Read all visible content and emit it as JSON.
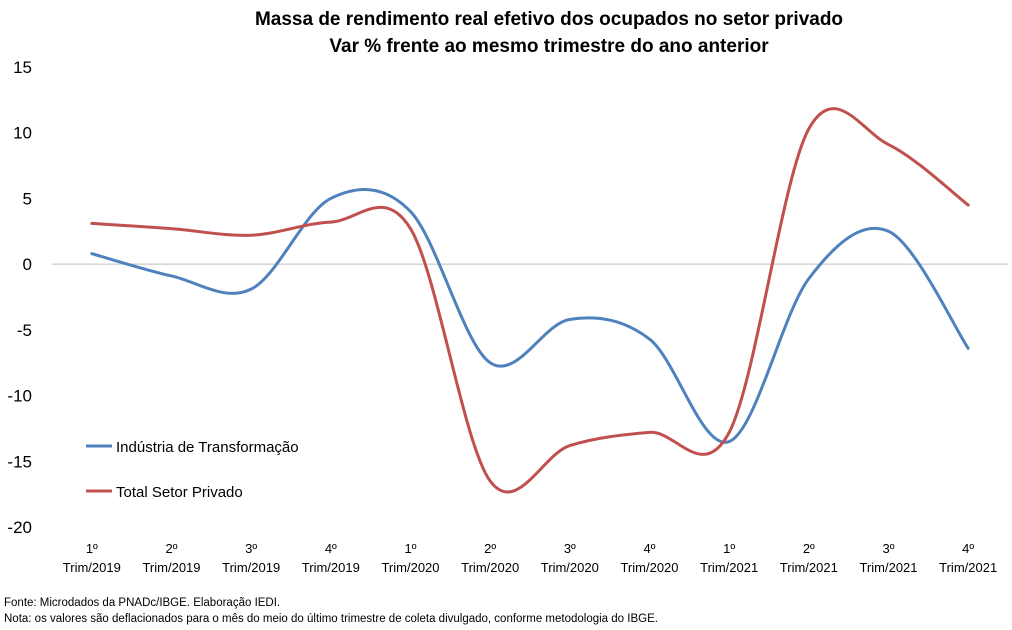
{
  "chart_data": {
    "type": "line",
    "title": [
      "Massa de rendimento real efetivo dos ocupados no setor privado",
      "Var % frente ao mesmo trimestre do ano anterior"
    ],
    "categories": [
      [
        "1º",
        "Trim/2019"
      ],
      [
        "2º",
        "Trim/2019"
      ],
      [
        "3º",
        "Trim/2019"
      ],
      [
        "4º",
        "Trim/2019"
      ],
      [
        "1º",
        "Trim/2020"
      ],
      [
        "2º",
        "Trim/2020"
      ],
      [
        "3º",
        "Trim/2020"
      ],
      [
        "4º",
        "Trim/2020"
      ],
      [
        "1º",
        "Trim/2021"
      ],
      [
        "2º",
        "Trim/2021"
      ],
      [
        "3º",
        "Trim/2021"
      ],
      [
        "4º",
        "Trim/2021"
      ]
    ],
    "ylim": [
      -20,
      15
    ],
    "yticks": [
      15,
      10,
      5,
      0,
      -5,
      -10,
      -15,
      -20
    ],
    "smooth": true,
    "legend_position": "left",
    "series": [
      {
        "name": "Indústria de Transformação",
        "color": "#4f81bd",
        "values": [
          0.8,
          -0.9,
          -1.9,
          5.0,
          4.0,
          -7.5,
          -4.2,
          -5.7,
          -13.5,
          -1.1,
          2.5,
          -6.4
        ]
      },
      {
        "name": "Total Setor Privado",
        "color": "#c0504d",
        "values": [
          3.1,
          2.7,
          2.2,
          3.2,
          2.7,
          -16.5,
          -13.8,
          -12.8,
          -12.8,
          10.3,
          9.1,
          4.5
        ]
      }
    ]
  },
  "footer": {
    "source": "Fonte: Microdados da PNADc/IBGE. Elaboração IEDI.",
    "note": "Nota: os valores são deflacionados para o mês do meio do último trimestre de coleta divulgado, conforme metodologia do IBGE."
  }
}
